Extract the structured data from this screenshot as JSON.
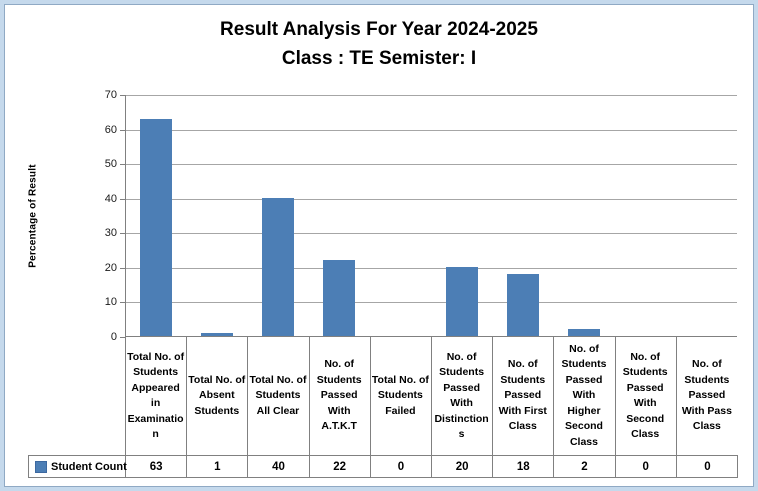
{
  "chart_data": {
    "type": "bar",
    "title": "Result Analysis For Year 2024-2025",
    "subtitle": "Class : TE Semister: I",
    "ylabel": "Percentage of Result",
    "ylim": [
      0,
      70
    ],
    "yticks": [
      0,
      10,
      20,
      30,
      40,
      50,
      60,
      70
    ],
    "grid": true,
    "legend_position": "bottom-table",
    "categories": [
      "Total No. of Students Appeared in Examination",
      "Total No. of Absent Students",
      "Total No. of Students All Clear",
      "No. of Students Passed With A.T.K.T",
      "Total No. of Students Failed",
      "No. of Students Passed With Distinctions",
      "No. of Students Passed With First Class",
      "No. of Students Passed With Higher Second Class",
      "No. of Students Passed With Second Class",
      "No. of Students Passed With Pass Class"
    ],
    "series": [
      {
        "name": "Student Count",
        "values": [
          63,
          1,
          40,
          22,
          0,
          20,
          18,
          2,
          0,
          0
        ]
      }
    ],
    "bar_color": "#4C7EB5"
  },
  "colors": {
    "bar": "#4C7EB5",
    "gridline": "#A6A6A6",
    "axis": "#808080",
    "table_border": "#808080",
    "frame_halo": "#C5D9EC",
    "frame_line": "#8FA9C4",
    "text": "#000000"
  }
}
